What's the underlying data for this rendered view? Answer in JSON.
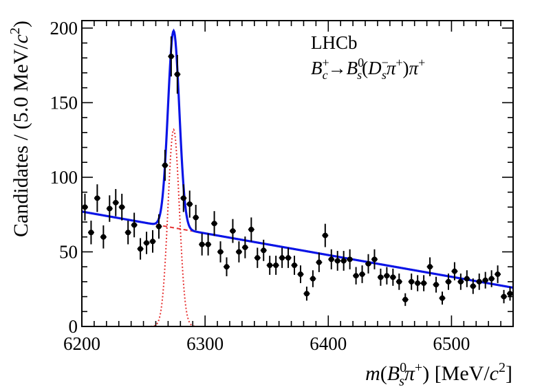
{
  "chart_data": {
    "type": "scatter",
    "title": "",
    "experiment_label": "LHCb",
    "decay": {
      "B": "B",
      "c_sub": "c",
      "plus": "+",
      "arrow": "→",
      "Bs": "B",
      "s_sub": "s",
      "zero": "0",
      "lparen": "(",
      "D": "D",
      "minus": "−",
      "pi": "π",
      "rparen": ")"
    },
    "xlabel": "m(B_s^0 π^+) [MeV/c^2]",
    "xlabel_parts": {
      "m": "m",
      "open": "(",
      "B": "B",
      "s": "s",
      "zero": "0",
      "pi": "π",
      "plus": "+",
      "close": ")",
      "units": " [MeV/",
      "c": "c",
      "two": "2",
      "end": "]"
    },
    "ylabel": "Candidates / (5.0 MeV/c^2)",
    "ylabel_parts": {
      "main": "Candidates / (5.0 MeV/",
      "c": "c",
      "two": "2",
      "end": ")"
    },
    "xlim": [
      6200,
      6550
    ],
    "ylim": [
      0,
      205
    ],
    "x_ticks": [
      6200,
      6300,
      6400,
      6500
    ],
    "y_ticks": [
      0,
      50,
      100,
      150,
      200
    ],
    "bin_width": 5.0,
    "series": [
      {
        "name": "Data",
        "color": "#000000",
        "x": [
          6202.5,
          6207.5,
          6212.5,
          6217.5,
          6222.5,
          6227.5,
          6232.5,
          6237.5,
          6242.5,
          6247.5,
          6252.5,
          6257.5,
          6262.5,
          6267.5,
          6272.5,
          6277.5,
          6282.5,
          6287.5,
          6292.5,
          6297.5,
          6302.5,
          6307.5,
          6312.5,
          6317.5,
          6322.5,
          6327.5,
          6332.5,
          6337.5,
          6342.5,
          6347.5,
          6352.5,
          6357.5,
          6362.5,
          6367.5,
          6372.5,
          6377.5,
          6382.5,
          6387.5,
          6392.5,
          6397.5,
          6402.5,
          6407.5,
          6412.5,
          6417.5,
          6422.5,
          6427.5,
          6432.5,
          6437.5,
          6442.5,
          6447.5,
          6452.5,
          6457.5,
          6462.5,
          6467.5,
          6472.5,
          6477.5,
          6482.5,
          6487.5,
          6492.5,
          6497.5,
          6502.5,
          6507.5,
          6512.5,
          6517.5,
          6522.5,
          6527.5,
          6532.5,
          6537.5,
          6542.5,
          6547.5
        ],
        "y": [
          80,
          63,
          86,
          60,
          79,
          83,
          80,
          63,
          68,
          52,
          56,
          57,
          67,
          108,
          181,
          169,
          86,
          82,
          73,
          55,
          55,
          69,
          50,
          40,
          64,
          50,
          53,
          65,
          46,
          51,
          41,
          41,
          46,
          46,
          41,
          35,
          22,
          32,
          43,
          61,
          45,
          44,
          44,
          45,
          34,
          35,
          42,
          45,
          33,
          34,
          33,
          30,
          18,
          30,
          29,
          29,
          40,
          28,
          19,
          30,
          37,
          30,
          32,
          27,
          30,
          31,
          32,
          35,
          20,
          22
        ]
      },
      {
        "name": "Total fit",
        "color": "#0a14e6",
        "style": "solid"
      },
      {
        "name": "Signal",
        "color": "#e63232",
        "style": "dotted"
      },
      {
        "name": "Background",
        "color": "#e63232",
        "style": "dashed"
      }
    ],
    "model": {
      "signal_mean": 6274.5,
      "signal_sigma": 4.6,
      "signal_peak": 132,
      "background_at_xmin": 77,
      "background_at_xmax": 26
    }
  }
}
